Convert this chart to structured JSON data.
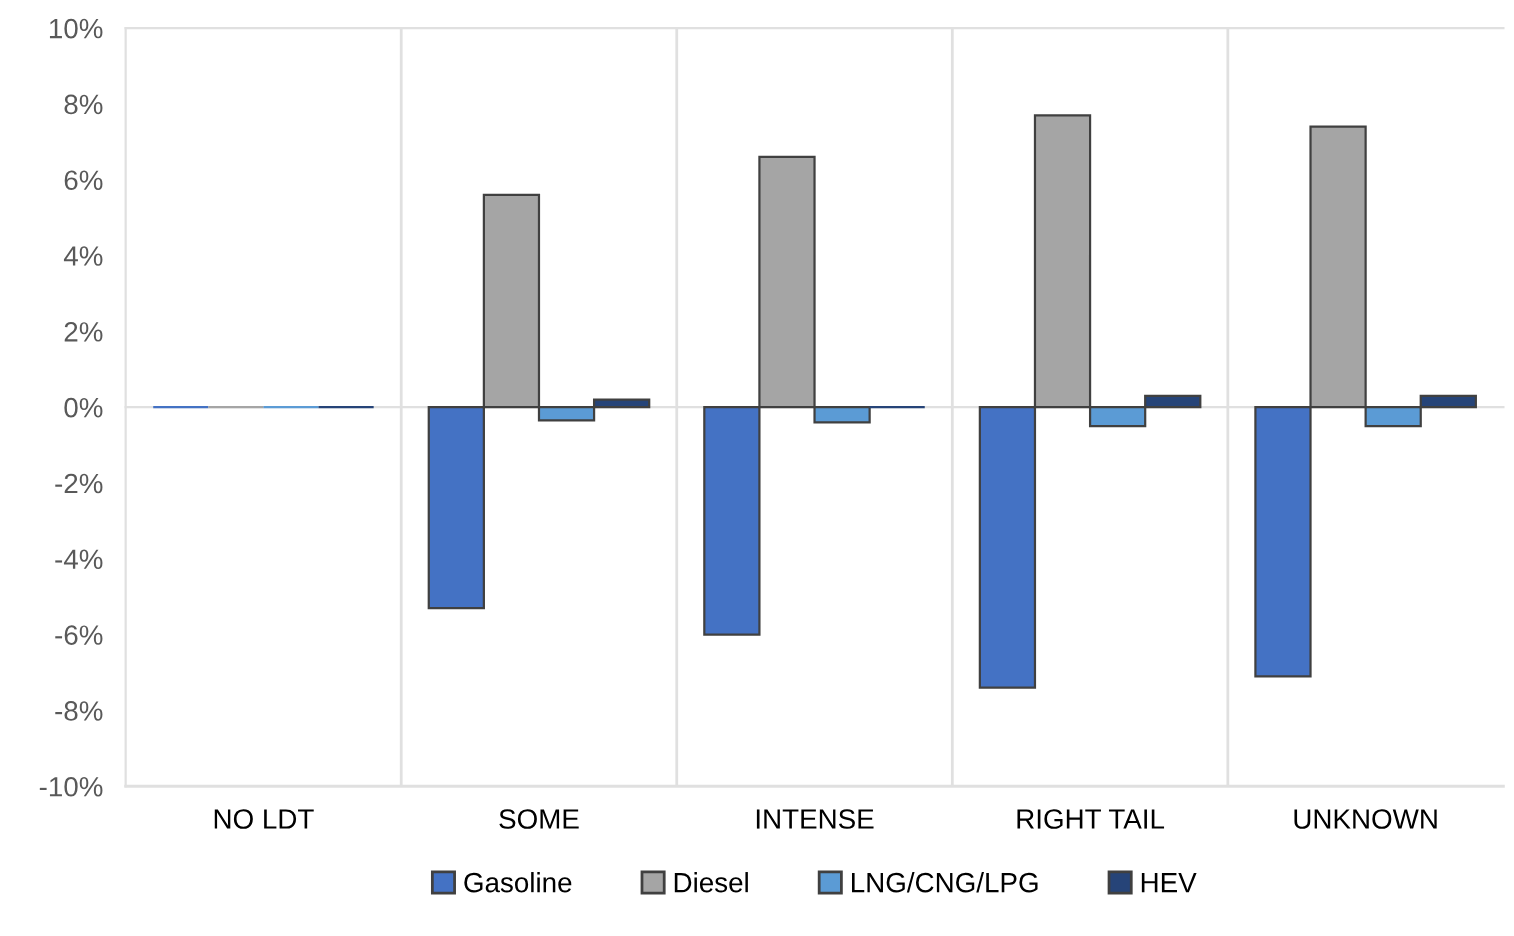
{
  "chart_data": {
    "type": "bar",
    "categories": [
      "NO LDT",
      "SOME",
      "INTENSE",
      "RIGHT TAIL",
      "UNKNOWN"
    ],
    "series": [
      {
        "name": "Gasoline",
        "color": "#4472c4",
        "values": [
          0,
          -5.3,
          -6.0,
          -7.4,
          -7.1
        ]
      },
      {
        "name": "Diesel",
        "color": "#a5a5a5",
        "values": [
          0,
          5.6,
          6.6,
          7.7,
          7.4
        ]
      },
      {
        "name": "LNG/CNG/LPG",
        "color": "#5b9bd5",
        "values": [
          0,
          -0.35,
          -0.4,
          -0.5,
          -0.5
        ]
      },
      {
        "name": "HEV",
        "color": "#264478",
        "values": [
          0,
          0.2,
          0,
          0.3,
          0.3
        ]
      }
    ],
    "ylim": [
      -10,
      10
    ],
    "yticks": [
      {
        "value": -10,
        "label": "-10%"
      },
      {
        "value": -8,
        "label": "-8%"
      },
      {
        "value": -6,
        "label": "-6%"
      },
      {
        "value": -4,
        "label": "-4%"
      },
      {
        "value": -2,
        "label": "-2%"
      },
      {
        "value": 0,
        "label": "0%"
      },
      {
        "value": 2,
        "label": "2%"
      },
      {
        "value": 4,
        "label": "4%"
      },
      {
        "value": 6,
        "label": "6%"
      },
      {
        "value": 8,
        "label": "8%"
      },
      {
        "value": 10,
        "label": "10%"
      }
    ],
    "grid": false,
    "legend": "bottom"
  }
}
